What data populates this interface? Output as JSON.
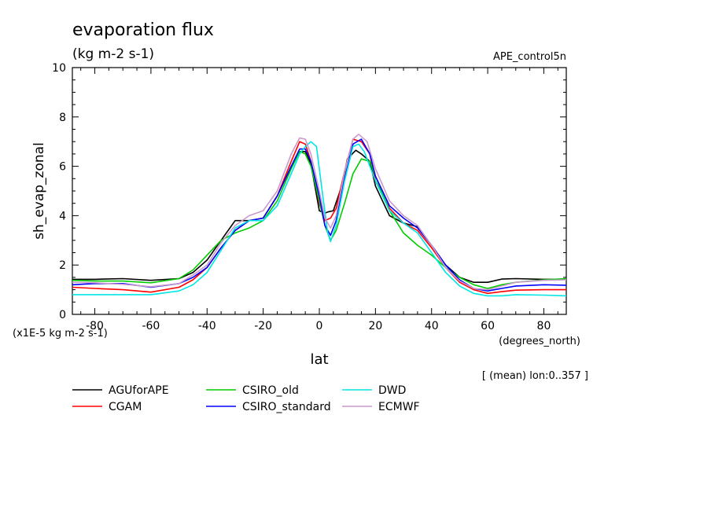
{
  "chart_data": {
    "type": "line",
    "title": "evaporation flux",
    "units": "(kg m-2 s-1)",
    "run_label": "APE_control5n",
    "ylabel": "sh_evap_zonal",
    "xlabel": "lat",
    "x_units": "(degrees_north)",
    "y_scale_note": "(x1E-5 kg m-2 s-1)",
    "mean_note": "[ (mean) lon:0..357 ]",
    "xlim": [
      -88,
      88
    ],
    "ylim": [
      0,
      10
    ],
    "x_ticks": [
      "-80",
      "-60",
      "-40",
      "-20",
      "0",
      "20",
      "40",
      "60",
      "80"
    ],
    "y_ticks": [
      "0",
      "2",
      "4",
      "6",
      "8",
      "10"
    ],
    "series": [
      {
        "name": "AGUforAPE",
        "color": "#000000",
        "points": [
          [
            -88,
            1.42
          ],
          [
            -80,
            1.42
          ],
          [
            -70,
            1.45
          ],
          [
            -60,
            1.38
          ],
          [
            -50,
            1.45
          ],
          [
            -45,
            1.7
          ],
          [
            -40,
            2.2
          ],
          [
            -35,
            3.0
          ],
          [
            -30,
            3.8
          ],
          [
            -25,
            3.8
          ],
          [
            -20,
            3.9
          ],
          [
            -15,
            4.8
          ],
          [
            -10,
            6.0
          ],
          [
            -7,
            6.6
          ],
          [
            -5,
            6.6
          ],
          [
            -3,
            6.1
          ],
          [
            0,
            4.2
          ],
          [
            2,
            4.1
          ],
          [
            3,
            4.15
          ],
          [
            5,
            4.2
          ],
          [
            8,
            5.2
          ],
          [
            10,
            6.3
          ],
          [
            13,
            6.65
          ],
          [
            15,
            6.5
          ],
          [
            18,
            6.2
          ],
          [
            20,
            5.2
          ],
          [
            25,
            4.0
          ],
          [
            30,
            3.7
          ],
          [
            35,
            3.55
          ],
          [
            40,
            2.8
          ],
          [
            45,
            2.0
          ],
          [
            50,
            1.5
          ],
          [
            55,
            1.3
          ],
          [
            60,
            1.3
          ],
          [
            65,
            1.43
          ],
          [
            70,
            1.45
          ],
          [
            80,
            1.42
          ],
          [
            88,
            1.42
          ]
        ]
      },
      {
        "name": "CGAM",
        "color": "#ff0000",
        "points": [
          [
            -88,
            1.1
          ],
          [
            -80,
            1.05
          ],
          [
            -70,
            1.0
          ],
          [
            -60,
            0.9
          ],
          [
            -50,
            1.1
          ],
          [
            -45,
            1.4
          ],
          [
            -40,
            1.9
          ],
          [
            -35,
            2.7
          ],
          [
            -30,
            3.4
          ],
          [
            -25,
            3.8
          ],
          [
            -20,
            3.9
          ],
          [
            -15,
            4.8
          ],
          [
            -10,
            6.2
          ],
          [
            -7,
            7.0
          ],
          [
            -5,
            6.9
          ],
          [
            -3,
            6.2
          ],
          [
            0,
            4.5
          ],
          [
            2,
            3.8
          ],
          [
            4,
            3.9
          ],
          [
            6,
            4.3
          ],
          [
            9,
            5.8
          ],
          [
            12,
            7.1
          ],
          [
            15,
            7.0
          ],
          [
            18,
            6.5
          ],
          [
            20,
            5.4
          ],
          [
            25,
            4.3
          ],
          [
            30,
            3.7
          ],
          [
            35,
            3.4
          ],
          [
            40,
            2.7
          ],
          [
            45,
            1.9
          ],
          [
            50,
            1.3
          ],
          [
            55,
            1.0
          ],
          [
            60,
            0.85
          ],
          [
            65,
            0.92
          ],
          [
            70,
            0.98
          ],
          [
            80,
            1.0
          ],
          [
            88,
            1.0
          ]
        ]
      },
      {
        "name": "CSIRO_old",
        "color": "#00cc00",
        "points": [
          [
            -88,
            1.38
          ],
          [
            -80,
            1.35
          ],
          [
            -70,
            1.35
          ],
          [
            -60,
            1.28
          ],
          [
            -50,
            1.45
          ],
          [
            -45,
            1.8
          ],
          [
            -40,
            2.4
          ],
          [
            -35,
            3.0
          ],
          [
            -30,
            3.3
          ],
          [
            -25,
            3.5
          ],
          [
            -20,
            3.8
          ],
          [
            -15,
            4.6
          ],
          [
            -10,
            5.9
          ],
          [
            -7,
            6.6
          ],
          [
            -5,
            6.5
          ],
          [
            -3,
            6.0
          ],
          [
            0,
            4.6
          ],
          [
            2,
            3.6
          ],
          [
            4,
            3.0
          ],
          [
            6,
            3.4
          ],
          [
            9,
            4.5
          ],
          [
            12,
            5.7
          ],
          [
            15,
            6.3
          ],
          [
            18,
            6.2
          ],
          [
            20,
            5.6
          ],
          [
            25,
            4.2
          ],
          [
            30,
            3.3
          ],
          [
            35,
            2.8
          ],
          [
            40,
            2.4
          ],
          [
            45,
            1.9
          ],
          [
            50,
            1.5
          ],
          [
            55,
            1.2
          ],
          [
            60,
            1.05
          ],
          [
            65,
            1.2
          ],
          [
            70,
            1.3
          ],
          [
            80,
            1.4
          ],
          [
            88,
            1.45
          ]
        ]
      },
      {
        "name": "CSIRO_standard",
        "color": "#0000ff",
        "points": [
          [
            -88,
            1.2
          ],
          [
            -80,
            1.25
          ],
          [
            -70,
            1.25
          ],
          [
            -60,
            1.1
          ],
          [
            -50,
            1.25
          ],
          [
            -45,
            1.5
          ],
          [
            -40,
            1.9
          ],
          [
            -35,
            2.7
          ],
          [
            -30,
            3.4
          ],
          [
            -25,
            3.8
          ],
          [
            -20,
            3.9
          ],
          [
            -15,
            4.8
          ],
          [
            -10,
            6.0
          ],
          [
            -7,
            6.7
          ],
          [
            -5,
            6.7
          ],
          [
            -3,
            6.2
          ],
          [
            0,
            4.8
          ],
          [
            2,
            3.6
          ],
          [
            4,
            3.2
          ],
          [
            6,
            3.8
          ],
          [
            9,
            5.5
          ],
          [
            12,
            6.9
          ],
          [
            15,
            7.1
          ],
          [
            18,
            6.5
          ],
          [
            20,
            5.6
          ],
          [
            25,
            4.4
          ],
          [
            30,
            3.9
          ],
          [
            35,
            3.5
          ],
          [
            40,
            2.8
          ],
          [
            45,
            2.0
          ],
          [
            50,
            1.4
          ],
          [
            55,
            1.05
          ],
          [
            60,
            0.95
          ],
          [
            65,
            1.05
          ],
          [
            70,
            1.15
          ],
          [
            80,
            1.2
          ],
          [
            88,
            1.18
          ]
        ]
      },
      {
        "name": "DWD",
        "color": "#00e5e5",
        "points": [
          [
            -88,
            0.8
          ],
          [
            -80,
            0.8
          ],
          [
            -70,
            0.8
          ],
          [
            -60,
            0.8
          ],
          [
            -50,
            0.95
          ],
          [
            -45,
            1.2
          ],
          [
            -40,
            1.7
          ],
          [
            -35,
            2.6
          ],
          [
            -30,
            3.5
          ],
          [
            -25,
            3.8
          ],
          [
            -20,
            3.8
          ],
          [
            -15,
            4.4
          ],
          [
            -10,
            5.7
          ],
          [
            -7,
            6.5
          ],
          [
            -5,
            6.8
          ],
          [
            -3,
            7.0
          ],
          [
            -1,
            6.8
          ],
          [
            1,
            5.0
          ],
          [
            3,
            3.3
          ],
          [
            4,
            2.95
          ],
          [
            6,
            3.6
          ],
          [
            9,
            5.4
          ],
          [
            12,
            6.8
          ],
          [
            14,
            6.9
          ],
          [
            16,
            6.6
          ],
          [
            20,
            5.4
          ],
          [
            25,
            4.2
          ],
          [
            30,
            3.7
          ],
          [
            35,
            3.3
          ],
          [
            40,
            2.5
          ],
          [
            45,
            1.7
          ],
          [
            50,
            1.15
          ],
          [
            55,
            0.85
          ],
          [
            60,
            0.75
          ],
          [
            65,
            0.75
          ],
          [
            70,
            0.8
          ],
          [
            80,
            0.78
          ],
          [
            88,
            0.75
          ]
        ]
      },
      {
        "name": "ECMWF",
        "color": "#cc99cc",
        "points": [
          [
            -88,
            1.3
          ],
          [
            -80,
            1.28
          ],
          [
            -70,
            1.22
          ],
          [
            -60,
            1.12
          ],
          [
            -50,
            1.25
          ],
          [
            -45,
            1.6
          ],
          [
            -40,
            2.0
          ],
          [
            -35,
            2.9
          ],
          [
            -30,
            3.6
          ],
          [
            -25,
            4.0
          ],
          [
            -20,
            4.2
          ],
          [
            -15,
            5.0
          ],
          [
            -10,
            6.5
          ],
          [
            -7,
            7.15
          ],
          [
            -5,
            7.1
          ],
          [
            -3,
            6.5
          ],
          [
            0,
            5.0
          ],
          [
            2,
            3.9
          ],
          [
            4,
            3.5
          ],
          [
            6,
            4.0
          ],
          [
            9,
            5.8
          ],
          [
            12,
            7.1
          ],
          [
            14,
            7.3
          ],
          [
            17,
            7.0
          ],
          [
            20,
            5.9
          ],
          [
            25,
            4.6
          ],
          [
            30,
            4.0
          ],
          [
            35,
            3.6
          ],
          [
            40,
            2.8
          ],
          [
            45,
            1.9
          ],
          [
            50,
            1.35
          ],
          [
            55,
            1.05
          ],
          [
            60,
            1.0
          ],
          [
            65,
            1.15
          ],
          [
            70,
            1.3
          ],
          [
            80,
            1.38
          ],
          [
            88,
            1.4
          ]
        ]
      }
    ]
  }
}
